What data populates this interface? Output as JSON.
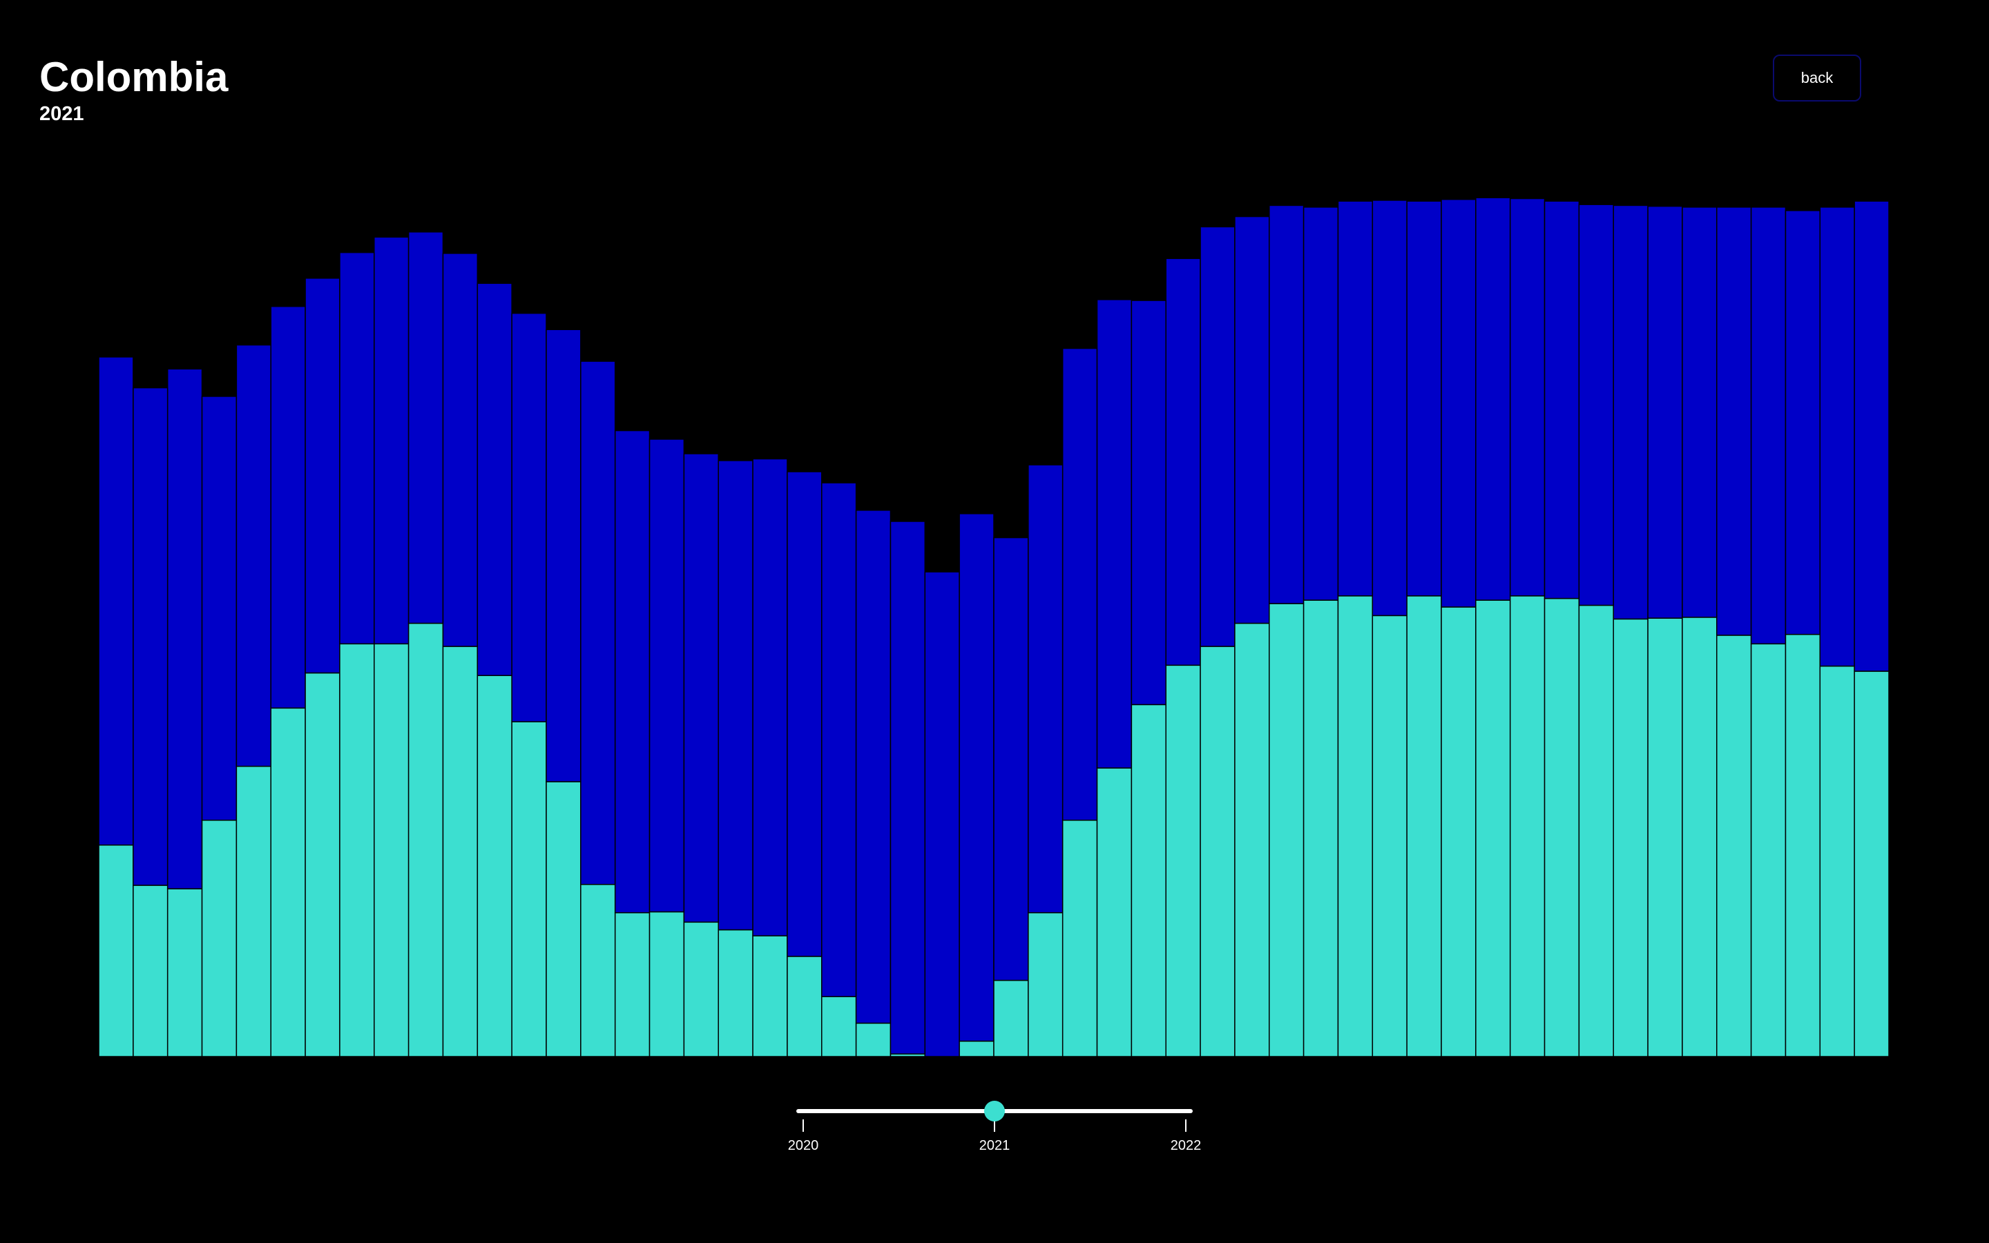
{
  "header": {
    "title": "Colombia",
    "subtitle": "2021",
    "back_label": "back"
  },
  "colors": {
    "background": "#000000",
    "upper_series": "#0000c8",
    "lower_series": "#3cdfd0",
    "bar_border": "#000000"
  },
  "slider": {
    "selected": "2021",
    "ticks": [
      "2020",
      "2021",
      "2022"
    ],
    "selected_fraction": 0.5
  },
  "chart_data": {
    "type": "bar",
    "stacked": true,
    "axes_visible": false,
    "grid": false,
    "ylim": [
      0,
      1
    ],
    "series": [
      {
        "color": "#3cdfd0",
        "values": [
          0.247,
          0.2,
          0.196,
          0.276,
          0.339,
          0.407,
          0.448,
          0.482,
          0.482,
          0.506,
          0.479,
          0.445,
          0.391,
          0.321,
          0.201,
          0.168,
          0.169,
          0.157,
          0.148,
          0.141,
          0.117,
          0.07,
          0.039,
          0.003,
          0.0,
          0.018,
          0.089,
          0.168,
          0.276,
          0.337,
          0.411,
          0.457,
          0.479,
          0.506,
          0.529,
          0.533,
          0.538,
          0.515,
          0.538,
          0.525,
          0.533,
          0.538,
          0.535,
          0.527,
          0.511,
          0.512,
          0.513,
          0.492,
          0.482,
          0.493,
          0.456,
          0.45
        ]
      },
      {
        "color": "#0000c8",
        "values": [
          0.57,
          0.581,
          0.607,
          0.495,
          0.492,
          0.469,
          0.461,
          0.457,
          0.475,
          0.457,
          0.459,
          0.458,
          0.477,
          0.528,
          0.611,
          0.563,
          0.552,
          0.547,
          0.548,
          0.557,
          0.566,
          0.6,
          0.599,
          0.622,
          0.566,
          0.616,
          0.517,
          0.523,
          0.551,
          0.547,
          0.472,
          0.475,
          0.49,
          0.475,
          0.465,
          0.459,
          0.461,
          0.485,
          0.461,
          0.476,
          0.47,
          0.464,
          0.464,
          0.468,
          0.483,
          0.481,
          0.479,
          0.5,
          0.51,
          0.495,
          0.536,
          0.549
        ]
      }
    ]
  }
}
